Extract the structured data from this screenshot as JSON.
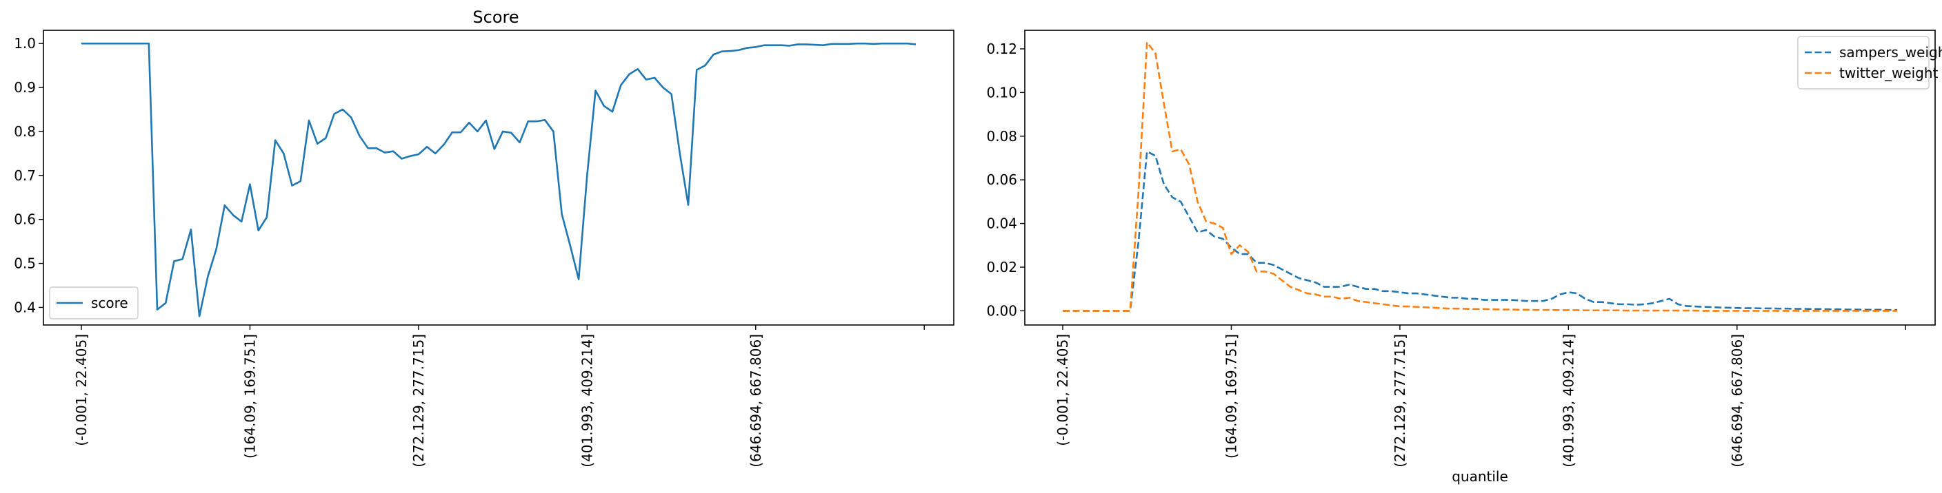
{
  "chart_data": [
    {
      "type": "line",
      "title": "Score",
      "xlabel": "",
      "ylabel": "",
      "ylim": [
        0.36,
        1.03
      ],
      "yticks": [
        "0.4",
        "0.5",
        "0.6",
        "0.7",
        "0.8",
        "0.9",
        "1.0"
      ],
      "xtick_labels": [
        "(-0.001, 22.405]",
        "(164.09, 169.751]",
        "(272.129, 277.715]",
        "(401.993, 409.214]",
        "(646.694, 667.806]",
        ""
      ],
      "xtick_positions": [
        0,
        20,
        40,
        60,
        80,
        100
      ],
      "xlim": [
        -4.5,
        103.5
      ],
      "legend_position": "lower-left",
      "grid": false,
      "series": [
        {
          "name": "score",
          "color": "#1f77b4",
          "dash": "solid",
          "values": [
            1.0,
            1.0,
            1.0,
            1.0,
            1.0,
            1.0,
            1.0,
            1.0,
            1.0,
            0.395,
            0.41,
            0.505,
            0.51,
            0.577,
            0.38,
            0.47,
            0.532,
            0.632,
            0.61,
            0.595,
            0.68,
            0.575,
            0.605,
            0.78,
            0.75,
            0.677,
            0.687,
            0.825,
            0.772,
            0.785,
            0.84,
            0.85,
            0.832,
            0.79,
            0.762,
            0.762,
            0.752,
            0.755,
            0.738,
            0.744,
            0.748,
            0.765,
            0.75,
            0.77,
            0.798,
            0.798,
            0.82,
            0.8,
            0.825,
            0.76,
            0.8,
            0.797,
            0.775,
            0.823,
            0.823,
            0.826,
            0.8,
            0.612,
            0.54,
            0.464,
            0.7,
            0.893,
            0.858,
            0.845,
            0.905,
            0.93,
            0.942,
            0.918,
            0.922,
            0.9,
            0.885,
            0.75,
            0.633,
            0.94,
            0.95,
            0.975,
            0.982,
            0.983,
            0.985,
            0.99,
            0.992,
            0.996,
            0.996,
            0.996,
            0.995,
            0.998,
            0.998,
            0.997,
            0.996,
            0.999,
            0.999,
            0.999,
            1.0,
            1.0,
            0.999,
            1.0,
            1.0,
            1.0,
            1.0,
            0.998
          ]
        }
      ]
    },
    {
      "type": "line",
      "title": "",
      "xlabel": "quantile",
      "ylabel": "",
      "ylim": [
        -0.0065,
        0.1285
      ],
      "yticks": [
        "0.00",
        "0.02",
        "0.04",
        "0.06",
        "0.08",
        "0.10",
        "0.12"
      ],
      "xtick_labels": [
        "(-0.001, 22.405]",
        "(164.09, 169.751]",
        "(272.129, 277.715]",
        "(401.993, 409.214]",
        "(646.694, 667.806]",
        ""
      ],
      "xtick_positions": [
        0,
        20,
        40,
        60,
        80,
        100
      ],
      "xlim": [
        -4.5,
        103.5
      ],
      "legend_position": "upper-right",
      "grid": false,
      "series": [
        {
          "name": "sampers_weight",
          "color": "#1f77b4",
          "dash": "dashed",
          "values": [
            0,
            0,
            0,
            0,
            0,
            0,
            0,
            0,
            0,
            0.032,
            0.073,
            0.071,
            0.058,
            0.052,
            0.05,
            0.043,
            0.036,
            0.037,
            0.034,
            0.033,
            0.029,
            0.026,
            0.026,
            0.022,
            0.022,
            0.021,
            0.019,
            0.017,
            0.015,
            0.014,
            0.013,
            0.011,
            0.011,
            0.011,
            0.012,
            0.011,
            0.01,
            0.01,
            0.009,
            0.009,
            0.0085,
            0.008,
            0.008,
            0.0075,
            0.007,
            0.0065,
            0.006,
            0.006,
            0.0055,
            0.0055,
            0.005,
            0.005,
            0.005,
            0.005,
            0.0048,
            0.0045,
            0.0045,
            0.0045,
            0.0055,
            0.0075,
            0.0085,
            0.008,
            0.0055,
            0.004,
            0.004,
            0.0035,
            0.003,
            0.003,
            0.0028,
            0.003,
            0.0035,
            0.0045,
            0.0055,
            0.003,
            0.0022,
            0.002,
            0.0018,
            0.0017,
            0.0015,
            0.0014,
            0.0013,
            0.0012,
            0.0012,
            0.0011,
            0.0011,
            0.001,
            0.001,
            0.0009,
            0.0009,
            0.0008,
            0.0008,
            0.0007,
            0.0007,
            0.0006,
            0.0006,
            0.0005,
            0.0005,
            0.0005,
            0.0004,
            0.0004
          ]
        },
        {
          "name": "twitter_weight",
          "color": "#ff7f0e",
          "dash": "dashed",
          "values": [
            0,
            0,
            0,
            0,
            0,
            0,
            0,
            0,
            0,
            0.055,
            0.123,
            0.118,
            0.095,
            0.073,
            0.074,
            0.067,
            0.05,
            0.041,
            0.04,
            0.038,
            0.026,
            0.03,
            0.027,
            0.018,
            0.018,
            0.017,
            0.014,
            0.011,
            0.0095,
            0.008,
            0.0075,
            0.0065,
            0.0065,
            0.0055,
            0.006,
            0.0045,
            0.004,
            0.0035,
            0.003,
            0.0025,
            0.002,
            0.002,
            0.0018,
            0.0016,
            0.0014,
            0.0012,
            0.001,
            0.001,
            0.0009,
            0.0008,
            0.0008,
            0.0007,
            0.0006,
            0.0006,
            0.0005,
            0.0005,
            0.0004,
            0.0004,
            0.0004,
            0.0003,
            0.0003,
            0.0003,
            0.0002,
            0.0002,
            0.0002,
            0.0002,
            0.0002,
            0.0001,
            0.0001,
            0.0001,
            0.0001,
            0.0001,
            0.0001,
            0.0001,
            0.0001,
            0.0001,
            0,
            0,
            0,
            0,
            0,
            0,
            0,
            0,
            0,
            0,
            0,
            0,
            0,
            0,
            0,
            0,
            0,
            0,
            0,
            0,
            0,
            0,
            0,
            0
          ]
        }
      ]
    }
  ]
}
